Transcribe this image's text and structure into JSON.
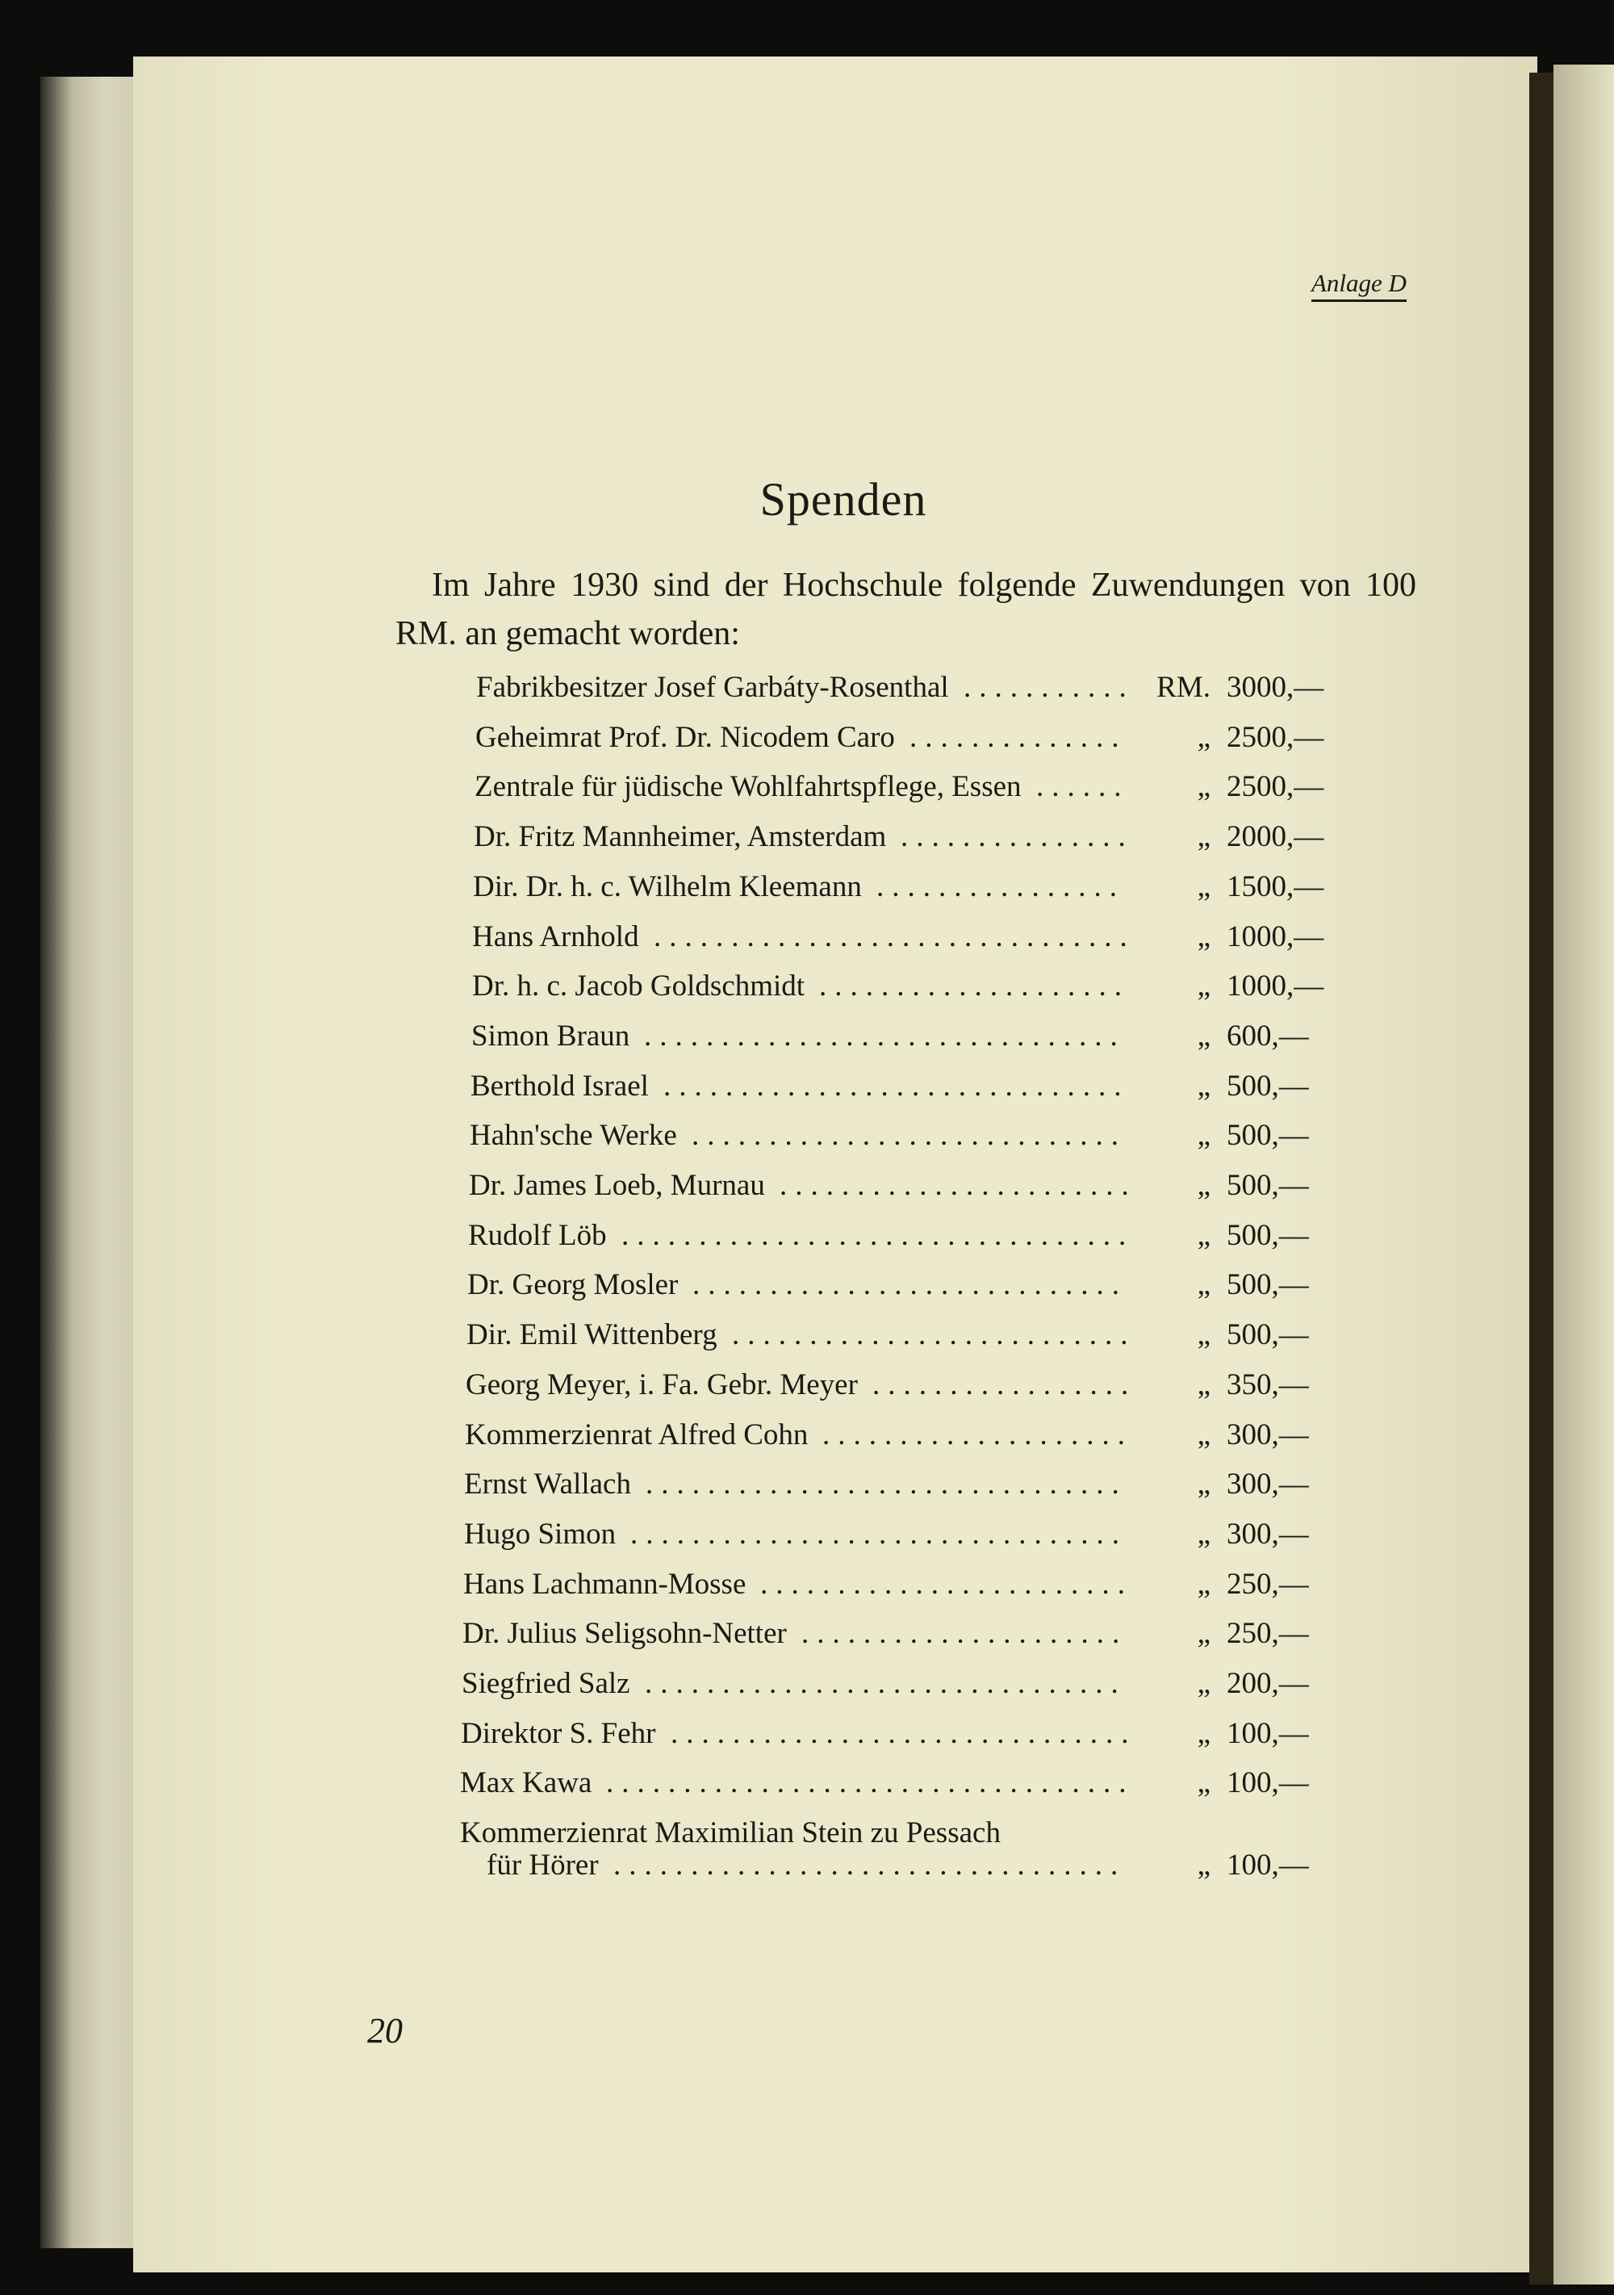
{
  "header": {
    "appendix_label": "Anlage D"
  },
  "title": "Spenden",
  "intro": "Im Jahre 1930 sind der Hochschule folgende Zuwendungen von 100 RM. an gemacht worden:",
  "donations": [
    {
      "name": "Fabrikbesitzer Josef Garbáty-Rosenthal",
      "unit": "RM.",
      "amount": "3000,—"
    },
    {
      "name": "Geheimrat Prof. Dr. Nicodem Caro",
      "unit": "„",
      "amount": "2500,—"
    },
    {
      "name": "Zentrale für jüdische Wohlfahrtspflege, Essen",
      "unit": "„",
      "amount": "2500,—"
    },
    {
      "name": "Dr. Fritz Mannheimer, Amsterdam",
      "unit": "„",
      "amount": "2000,—"
    },
    {
      "name": "Dir. Dr. h. c. Wilhelm Kleemann",
      "unit": "„",
      "amount": "1500,—"
    },
    {
      "name": "Hans Arnhold",
      "unit": "„",
      "amount": "1000,—"
    },
    {
      "name": "Dr. h. c. Jacob Goldschmidt",
      "unit": "„",
      "amount": "1000,—"
    },
    {
      "name": "Simon Braun",
      "unit": "„",
      "amount": "600,—"
    },
    {
      "name": "Berthold Israel",
      "unit": "„",
      "amount": "500,—"
    },
    {
      "name": "Hahn'sche Werke",
      "unit": "„",
      "amount": "500,—"
    },
    {
      "name": "Dr. James Loeb, Murnau",
      "unit": "„",
      "amount": "500,—"
    },
    {
      "name": "Rudolf Löb",
      "unit": "„",
      "amount": "500,—"
    },
    {
      "name": "Dr. Georg Mosler",
      "unit": "„",
      "amount": "500,—"
    },
    {
      "name": "Dir. Emil Wittenberg",
      "unit": "„",
      "amount": "500,—"
    },
    {
      "name": "Georg Meyer, i. Fa. Gebr. Meyer",
      "unit": "„",
      "amount": "350,—"
    },
    {
      "name": "Kommerzienrat Alfred Cohn",
      "unit": "„",
      "amount": "300,—"
    },
    {
      "name": "Ernst Wallach",
      "unit": "„",
      "amount": "300,—"
    },
    {
      "name": "Hugo Simon",
      "unit": "„",
      "amount": "300,—"
    },
    {
      "name": "Hans Lachmann-Mosse",
      "unit": "„",
      "amount": "250,—"
    },
    {
      "name": "Dr. Julius Seligsohn-Netter",
      "unit": "„",
      "amount": "250,—"
    },
    {
      "name": "Siegfried Salz",
      "unit": "„",
      "amount": "200,—"
    },
    {
      "name": "Direktor S. Fehr",
      "unit": "„",
      "amount": "100,—"
    },
    {
      "name": "Max Kawa",
      "unit": "„",
      "amount": "100,—"
    }
  ],
  "last_donation": {
    "name_line1": "Kommerzienrat Maximilian Stein zu Pessach",
    "name_line2": "für Hörer",
    "unit": "„",
    "amount": "100,—"
  },
  "page_number": "20"
}
